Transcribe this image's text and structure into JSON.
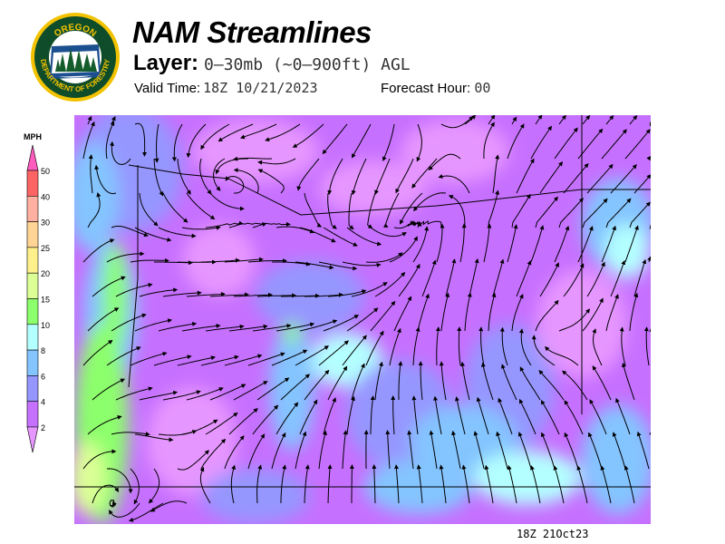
{
  "header": {
    "logo_text": "OREGON DEPARTMENT OF FORESTRY",
    "title": "NAM Streamlines",
    "layer_label": "Layer:",
    "layer_value": "0–30mb (~0–900ft) AGL",
    "valid_label": "Valid Time:",
    "valid_value": "18Z 10/21/2023",
    "forecast_label": "Forecast Hour:",
    "forecast_value": "00"
  },
  "legend": {
    "unit": "MPH",
    "ticks": [
      "50",
      "40",
      "30",
      "25",
      "20",
      "15",
      "10",
      "8",
      "6",
      "4",
      "2"
    ],
    "colors": {
      "above_50": "#ff5cc0",
      "40-50": "#ff6464",
      "30-40": "#ffb0a0",
      "25-30": "#ffd494",
      "20-25": "#fff08c",
      "15-20": "#dcff96",
      "10-15": "#8cff6c",
      "8-10": "#b4ffff",
      "6-8": "#84c4ff",
      "4-6": "#9696ff",
      "2-4": "#c670ff",
      "below_2": "#e696ff"
    }
  },
  "footer": {
    "stamp": "18Z 21Oct23"
  }
}
